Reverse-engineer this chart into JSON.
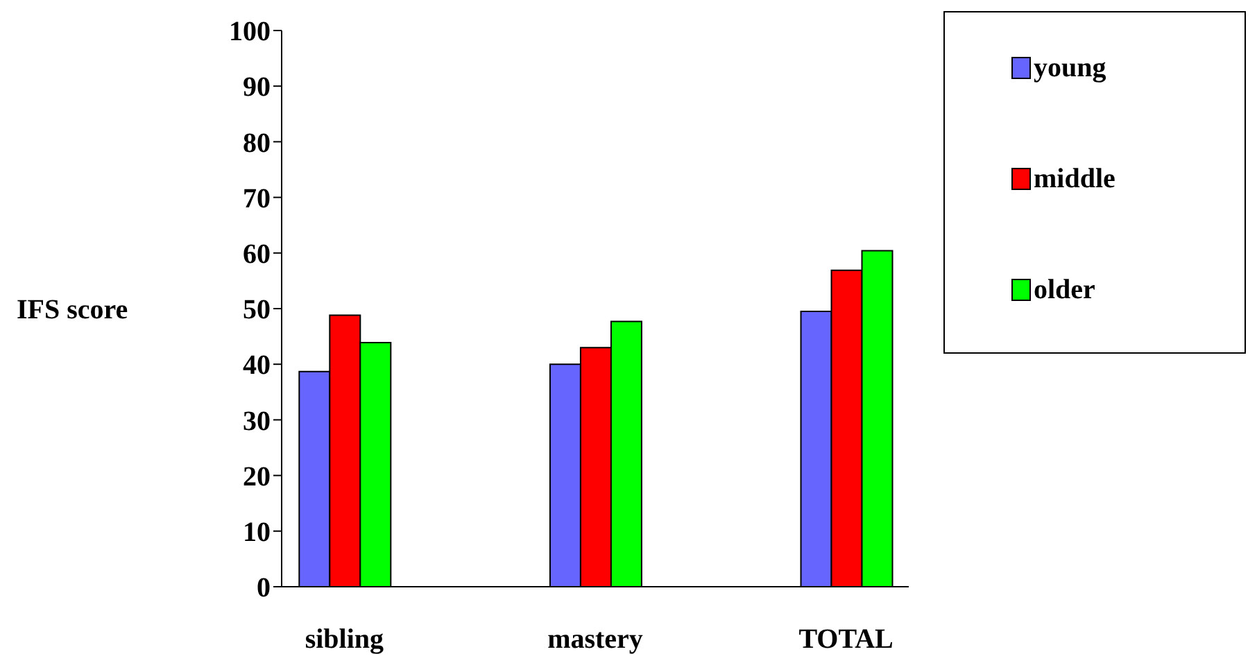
{
  "chart_data": {
    "type": "bar",
    "ylabel": "IFS score",
    "categories": [
      "sibling",
      null,
      "mastery",
      null,
      "TOTAL"
    ],
    "series": [
      {
        "name": "young",
        "color": "#6666ff",
        "values": [
          38.7,
          null,
          40.0,
          null,
          49.5
        ]
      },
      {
        "name": "middle",
        "color": "#ff0000",
        "values": [
          48.8,
          null,
          43.0,
          null,
          56.9
        ]
      },
      {
        "name": "older",
        "color": "#00ff00",
        "values": [
          43.9,
          null,
          47.7,
          null,
          60.4
        ]
      }
    ],
    "ylim": [
      0,
      100
    ],
    "yticks": [
      0,
      10,
      20,
      30,
      40,
      50,
      60,
      70,
      80,
      90,
      100
    ],
    "grid": false,
    "legend": "top right"
  }
}
